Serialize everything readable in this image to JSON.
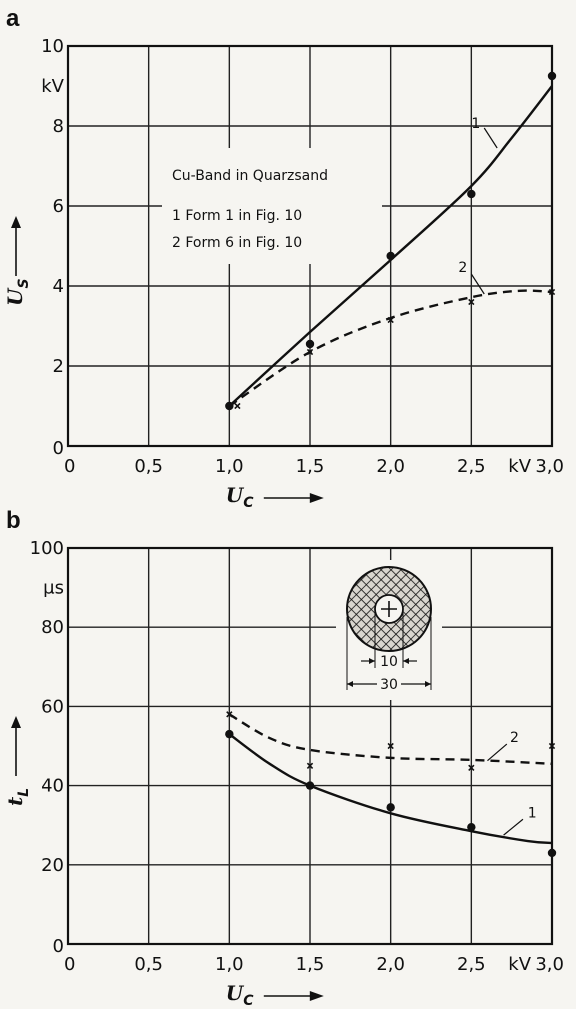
{
  "chart_data": [
    {
      "type": "line",
      "panel": "a",
      "xlabel": "U",
      "xlabel_sub": "C",
      "ylabel": "U",
      "ylabel_sub": "S",
      "x_unit": "kV",
      "y_unit": "kV",
      "xlim": [
        0,
        3.0
      ],
      "ylim": [
        0,
        10
      ],
      "x_ticks": [
        "0",
        "0,5",
        "1,0",
        "1,5",
        "2,0",
        "2,5",
        "3,0"
      ],
      "y_ticks": [
        "0",
        "2",
        "4",
        "6",
        "8",
        "10"
      ],
      "grid": true,
      "legend": {
        "title": "Cu-Band in Quarzsand",
        "entries": [
          "1  Form 1 in Fig. 10",
          "2  Form 6 in Fig. 10"
        ]
      },
      "series": [
        {
          "name": "1",
          "style": "solid",
          "marker": "dot",
          "points": [
            [
              1.0,
              1.0
            ],
            [
              1.5,
              2.55
            ],
            [
              2.0,
              4.75
            ],
            [
              2.5,
              6.3
            ],
            [
              3.0,
              9.25
            ]
          ],
          "curve": [
            [
              1.0,
              1.0
            ],
            [
              1.5,
              2.85
            ],
            [
              2.0,
              4.65
            ],
            [
              2.5,
              6.5
            ],
            [
              2.75,
              7.7
            ],
            [
              3.0,
              9.0
            ]
          ]
        },
        {
          "name": "2",
          "style": "dashed",
          "marker": "x",
          "points": [
            [
              1.05,
              1.0
            ],
            [
              1.5,
              2.35
            ],
            [
              2.0,
              3.15
            ],
            [
              2.5,
              3.6
            ],
            [
              3.0,
              3.85
            ]
          ],
          "curve": [
            [
              1.0,
              1.0
            ],
            [
              1.5,
              2.35
            ],
            [
              2.0,
              3.2
            ],
            [
              2.5,
              3.72
            ],
            [
              2.8,
              3.88
            ],
            [
              3.0,
              3.85
            ]
          ]
        }
      ]
    },
    {
      "type": "line",
      "panel": "b",
      "xlabel": "U",
      "xlabel_sub": "C",
      "ylabel": "t",
      "ylabel_sub": "L",
      "x_unit": "kV",
      "y_unit": "µs",
      "xlim": [
        0,
        3.0
      ],
      "ylim": [
        0,
        100
      ],
      "x_ticks": [
        "0",
        "0,5",
        "1,0",
        "1,5",
        "2,0",
        "2,5",
        "3,0"
      ],
      "y_ticks": [
        "0",
        "20",
        "40",
        "60",
        "80",
        "100"
      ],
      "grid": true,
      "inset": {
        "inner_label": "10",
        "outer_label": "30"
      },
      "series": [
        {
          "name": "1",
          "style": "solid",
          "marker": "dot",
          "points": [
            [
              1.0,
              53
            ],
            [
              1.5,
              40
            ],
            [
              2.0,
              34.5
            ],
            [
              2.5,
              29.5
            ],
            [
              3.0,
              23
            ]
          ],
          "curve": [
            [
              1.0,
              53
            ],
            [
              1.25,
              45.5
            ],
            [
              1.5,
              40
            ],
            [
              2.0,
              33
            ],
            [
              2.5,
              28.5
            ],
            [
              2.85,
              26
            ],
            [
              3.0,
              25.5
            ]
          ]
        },
        {
          "name": "2",
          "style": "dashed",
          "marker": "x",
          "points": [
            [
              1.0,
              58
            ],
            [
              1.5,
              45
            ],
            [
              2.0,
              50
            ],
            [
              2.5,
              44.5
            ],
            [
              3.0,
              50
            ]
          ],
          "curve": [
            [
              1.0,
              58
            ],
            [
              1.25,
              52
            ],
            [
              1.5,
              49
            ],
            [
              2.0,
              47
            ],
            [
              2.5,
              46.5
            ],
            [
              3.0,
              45.5
            ]
          ]
        }
      ]
    }
  ],
  "panels": {
    "a": {
      "letter": "a"
    },
    "b": {
      "letter": "b"
    }
  }
}
